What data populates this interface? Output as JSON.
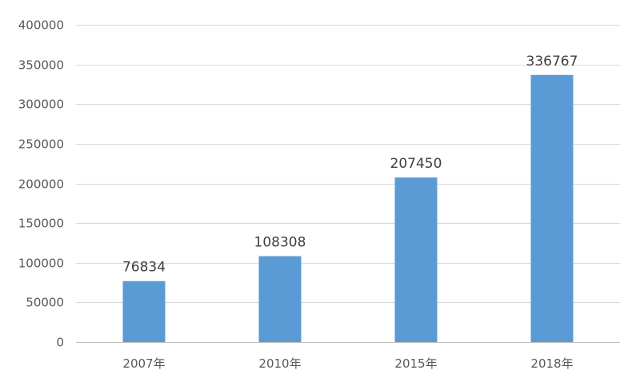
{
  "chart_data": {
    "type": "bar",
    "categories": [
      "2007年",
      "2010年",
      "2015年",
      "2018年"
    ],
    "values": [
      76834,
      108308,
      207450,
      336767
    ],
    "data_labels": [
      "76834",
      "108308",
      "207450",
      "336767"
    ],
    "title": "",
    "xlabel": "",
    "ylabel": "",
    "ylim": [
      0,
      400000
    ],
    "y_ticks": [
      0,
      50000,
      100000,
      150000,
      200000,
      250000,
      300000,
      350000,
      400000
    ],
    "y_tick_labels": [
      "0",
      "50000",
      "100000",
      "150000",
      "200000",
      "250000",
      "300000",
      "350000",
      "400000"
    ],
    "grid": true,
    "legend": "none",
    "bar_color": "#5b9bd5"
  }
}
